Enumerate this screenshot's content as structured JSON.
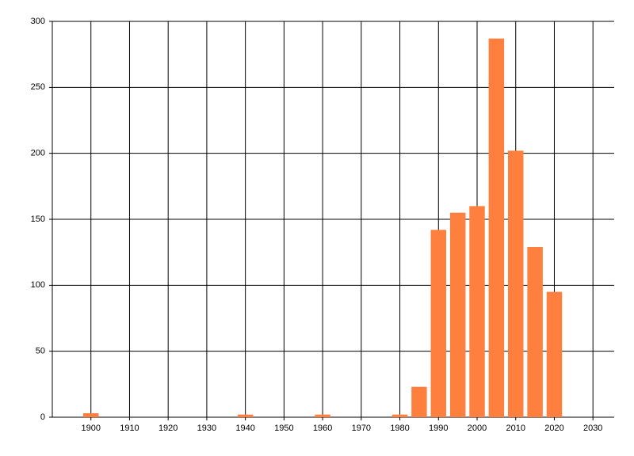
{
  "chart_data": {
    "type": "bar",
    "x": [
      1900,
      1940,
      1960,
      1980,
      1985,
      1990,
      1995,
      2000,
      2005,
      2010,
      2015,
      2020
    ],
    "values": [
      3,
      2,
      2,
      2,
      23,
      142,
      155,
      160,
      287,
      202,
      129,
      95
    ],
    "color": "#ff7f3f",
    "xlim": [
      1890,
      2035.5
    ],
    "xticks": [
      1900,
      1910,
      1920,
      1930,
      1940,
      1950,
      1960,
      1970,
      1980,
      1990,
      2000,
      2010,
      2020,
      2030
    ],
    "ylim": [
      0,
      300
    ],
    "yticks": [
      0,
      50,
      100,
      150,
      200,
      250,
      300
    ],
    "grid": true
  }
}
